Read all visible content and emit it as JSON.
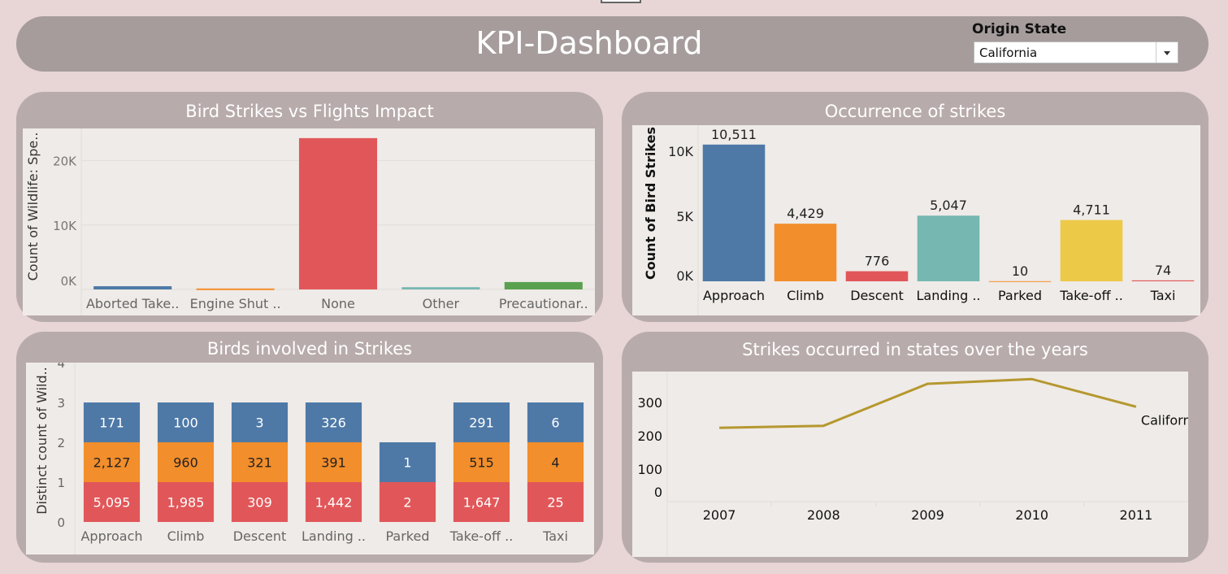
{
  "header": {
    "title": "KPI-Dashboard"
  },
  "filter": {
    "label": "Origin State",
    "value": "California"
  },
  "panels": {
    "impact": {
      "title": "Bird Strikes vs Flights Impact"
    },
    "occurrence": {
      "title": "Occurrence of strikes"
    },
    "birds": {
      "title": "Birds involved in Strikes"
    },
    "states": {
      "title": "Strikes occurred in states over the years"
    }
  },
  "colors": {
    "blue": "#4e79a7",
    "orange": "#f28e2b",
    "red": "#e15759",
    "teal": "#76b7b2",
    "green": "#59a14f",
    "yellow": "#edc948",
    "line": "#b5982f"
  },
  "chart_data": [
    {
      "id": "impact",
      "type": "bar",
      "title": "Bird Strikes vs Flights Impact",
      "ylabel": "Count of Wildlife: Spe..",
      "categories": [
        "Aborted Take..",
        "Engine Shut ..",
        "None",
        "Other",
        "Precautionar.."
      ],
      "values": [
        500,
        150,
        23500,
        350,
        1150
      ],
      "bar_colors": [
        "#4e79a7",
        "#f28e2b",
        "#e15759",
        "#76b7b2",
        "#59a14f"
      ],
      "ylim": [
        0,
        25000
      ],
      "yticks": [
        0,
        10000,
        20000
      ],
      "ytick_labels": [
        "0K",
        "10K",
        "20K"
      ]
    },
    {
      "id": "occurrence",
      "type": "bar",
      "title": "Occurrence of strikes",
      "ylabel": "Count of Bird Strikes",
      "categories": [
        "Approach",
        "Climb",
        "Descent",
        "Landing ..",
        "Parked",
        "Take-off ..",
        "Taxi"
      ],
      "values": [
        10511,
        4429,
        776,
        5047,
        10,
        4711,
        74
      ],
      "value_labels": [
        "10,511",
        "4,429",
        "776",
        "5,047",
        "10",
        "4,711",
        "74"
      ],
      "bar_colors": [
        "#4e79a7",
        "#f28e2b",
        "#e15759",
        "#76b7b2",
        "#f28e2b",
        "#edc948",
        "#e15759"
      ],
      "ylim": [
        0,
        12000
      ],
      "yticks": [
        0,
        5000,
        10000
      ],
      "ytick_labels": [
        "0K",
        "5K",
        "10K"
      ]
    },
    {
      "id": "birds",
      "type": "bar",
      "stacked": true,
      "title": "Birds involved in Strikes",
      "ylabel": "Distinct count of Wild..",
      "categories": [
        "Approach",
        "Climb",
        "Descent",
        "Landing ..",
        "Parked",
        "Take-off ..",
        "Taxi"
      ],
      "ylim": [
        0,
        4
      ],
      "yticks": [
        0,
        1,
        2,
        3,
        4
      ],
      "series": [
        {
          "color": "#e15759",
          "segments": [
            1,
            1,
            1,
            1,
            1,
            1,
            1
          ],
          "labels": [
            "5,095",
            "1,985",
            "309",
            "1,442",
            "2",
            "1,647",
            "25"
          ]
        },
        {
          "color": "#f28e2b",
          "segments": [
            1,
            1,
            1,
            1,
            0,
            1,
            1
          ],
          "labels": [
            "2,127",
            "960",
            "321",
            "391",
            "",
            "515",
            "4"
          ]
        },
        {
          "color": "#4e79a7",
          "segments": [
            1,
            1,
            1,
            1,
            1,
            1,
            1
          ],
          "labels": [
            "171",
            "100",
            "3",
            "326",
            "1",
            "291",
            "6"
          ]
        }
      ]
    },
    {
      "id": "states",
      "type": "line",
      "title": "Strikes occurred in states over the years",
      "x": [
        "2007",
        "2008",
        "2009",
        "2010",
        "2011"
      ],
      "series": [
        {
          "name": "California",
          "values": [
            224,
            230,
            356,
            370,
            287
          ],
          "color": "#b5982f"
        }
      ],
      "ylim": [
        0,
        400
      ],
      "yticks": [
        0,
        100,
        200,
        300
      ]
    }
  ]
}
